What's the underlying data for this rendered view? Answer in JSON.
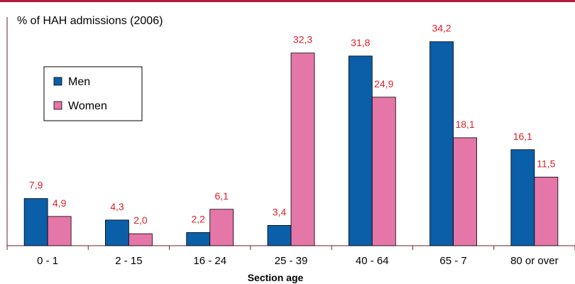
{
  "chart_data": {
    "type": "bar",
    "ylabel": "% of HAH admissions (2006)",
    "xlabel": "Section age",
    "categories": [
      "0 - 1",
      "2 - 15",
      "16 - 24",
      "25 - 39",
      "40 - 64",
      "65 - 7",
      "80 or over"
    ],
    "series": [
      {
        "name": "Men",
        "values": [
          7.9,
          4.3,
          2.2,
          3.4,
          31.8,
          34.2,
          16.1
        ],
        "labels": [
          "7,9",
          "4,3",
          "2,2",
          "3,4",
          "31,8",
          "34,2",
          "16,1"
        ]
      },
      {
        "name": "Women",
        "values": [
          4.9,
          2.0,
          6.1,
          32.3,
          24.9,
          18.1,
          11.5
        ],
        "labels": [
          "4,9",
          "2,0",
          "6,1",
          "32,3",
          "24,9",
          "18,1",
          "11,5"
        ]
      }
    ],
    "ylim": [
      0,
      36
    ],
    "grid": false,
    "legend_position": "top-left"
  },
  "colors": {
    "men": "#0b5ea8",
    "women": "#e576a8",
    "label": "#e0202a",
    "top_rule": "#b5183c",
    "axis": "#6b1f2e"
  }
}
